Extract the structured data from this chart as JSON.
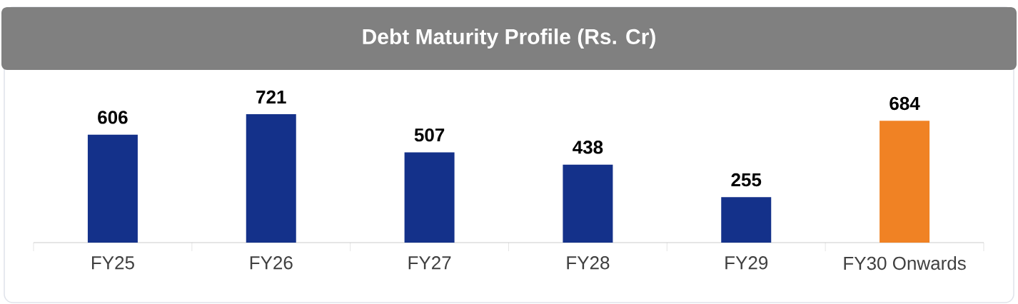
{
  "chart_data": {
    "type": "bar",
    "title": "Debt Maturity Profile (Rs. Cr)",
    "categories": [
      "FY25",
      "FY26",
      "FY27",
      "FY28",
      "FY29",
      "FY30 Onwards"
    ],
    "values": [
      606,
      721,
      507,
      438,
      255,
      684
    ],
    "colors": [
      "#14318a",
      "#14318a",
      "#14318a",
      "#14318a",
      "#14318a",
      "#f08224"
    ],
    "data_labels": true
  }
}
